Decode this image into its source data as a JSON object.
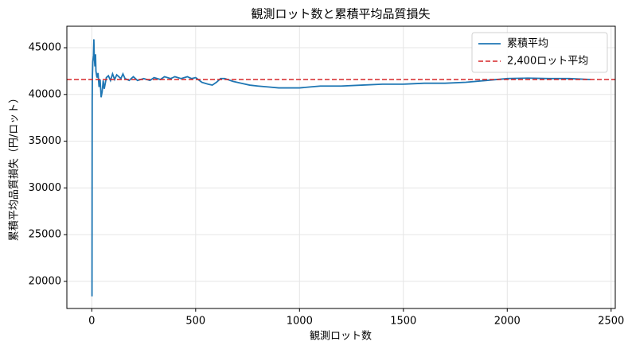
{
  "chart_data": {
    "type": "line",
    "title": "観測ロット数と累積平均品質損失",
    "xlabel": "観測ロット数",
    "ylabel": "累積平均品質損失（円/ロット）",
    "x": [
      1,
      2,
      3,
      5,
      8,
      10,
      12,
      15,
      18,
      20,
      25,
      30,
      35,
      40,
      45,
      50,
      55,
      60,
      70,
      80,
      90,
      100,
      110,
      120,
      140,
      150,
      160,
      180,
      200,
      220,
      250,
      280,
      300,
      330,
      350,
      380,
      400,
      430,
      460,
      480,
      500,
      530,
      560,
      580,
      600,
      620,
      640,
      680,
      720,
      760,
      800,
      850,
      900,
      950,
      1000,
      1050,
      1100,
      1200,
      1300,
      1400,
      1500,
      1600,
      1700,
      1800,
      1900,
      2000,
      2100,
      2200,
      2300,
      2400
    ],
    "series": [
      {
        "name": "累積平均",
        "color": "#1f77b4",
        "values": [
          18400,
          39300,
          42000,
          43500,
          44200,
          45900,
          44000,
          43000,
          44300,
          42500,
          41800,
          42300,
          40800,
          41600,
          39700,
          40300,
          41500,
          40600,
          41800,
          42000,
          41500,
          42200,
          41600,
          42100,
          41700,
          42200,
          41700,
          41500,
          41900,
          41500,
          41700,
          41500,
          41800,
          41600,
          41900,
          41700,
          41900,
          41700,
          41900,
          41700,
          41800,
          41300,
          41100,
          41000,
          41300,
          41700,
          41700,
          41400,
          41200,
          41000,
          40900,
          40800,
          40700,
          40700,
          40700,
          40800,
          40900,
          40900,
          41000,
          41100,
          41100,
          41200,
          41200,
          41300,
          41500,
          41700,
          41750,
          41700,
          41700,
          41600
        ]
      }
    ],
    "reference_line": {
      "label": "2,400ロット平均",
      "value": 41600,
      "color": "#d62728"
    },
    "xlim": [
      -120,
      2520
    ],
    "ylim": [
      17100,
      47300
    ],
    "xticks": [
      0,
      500,
      1000,
      1500,
      2000,
      2500
    ],
    "yticks": [
      20000,
      25000,
      30000,
      35000,
      40000,
      45000
    ],
    "grid": true,
    "legend": "upper right"
  }
}
